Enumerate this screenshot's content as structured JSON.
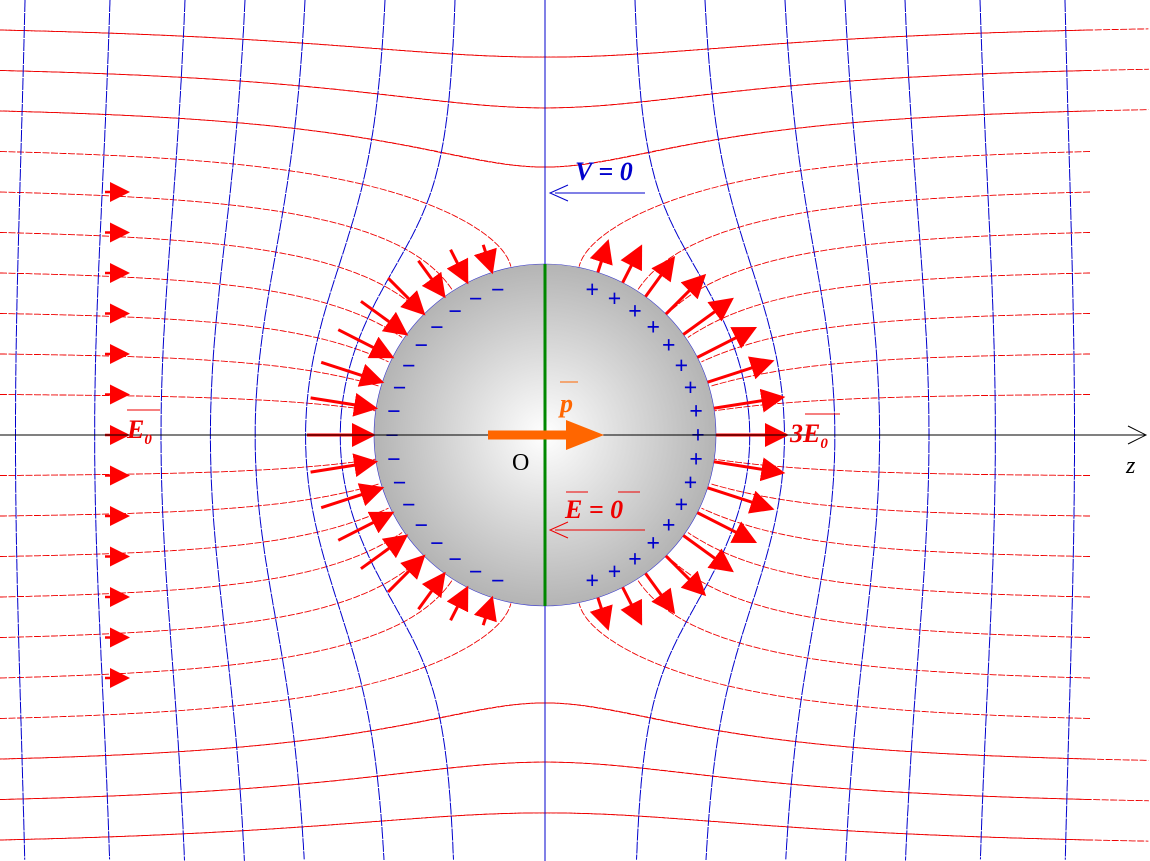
{
  "labels": {
    "potential_zero": {
      "symbol": "V",
      "equals": "=",
      "value": "0"
    },
    "field_inside": {
      "symbol": "E",
      "equals": "=",
      "value": "0"
    },
    "dipole": "p",
    "applied_field": {
      "symbol": "E",
      "subscript": "0"
    },
    "surface_field": {
      "coefficient": "3",
      "symbol": "E",
      "subscript": "0"
    },
    "origin": "O",
    "axis": "z"
  },
  "charges": {
    "negative": "−",
    "positive": "+"
  }
}
